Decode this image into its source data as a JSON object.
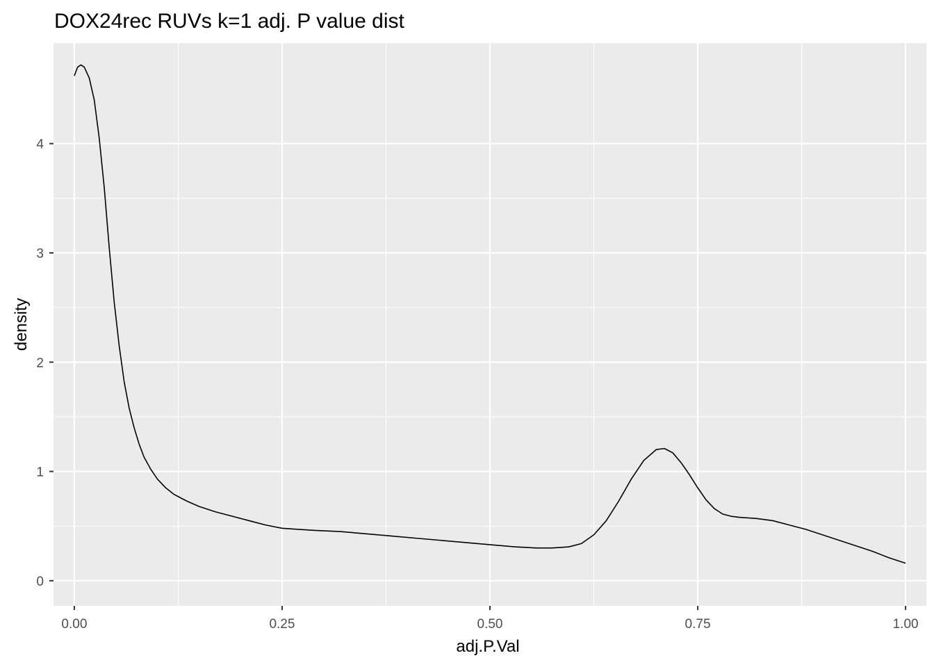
{
  "chart_data": {
    "type": "line",
    "title": "DOX24rec RUVs k=1 adj. P value dist",
    "xlabel": "adj.P.Val",
    "ylabel": "density",
    "xlim": [
      -0.025,
      1.025
    ],
    "ylim": [
      -0.23,
      4.92
    ],
    "x_ticks": [
      0,
      0.25,
      0.5,
      0.75,
      1
    ],
    "x_tick_labels": [
      "0.00",
      "0.25",
      "0.50",
      "0.75",
      "1.00"
    ],
    "y_ticks": [
      0,
      1,
      2,
      3,
      4
    ],
    "y_tick_labels": [
      "0",
      "1",
      "2",
      "3",
      "4"
    ],
    "grid": true,
    "legend": "none",
    "colors": {
      "panel": "#ebebeb",
      "grid": "#ffffff",
      "line": "#000000",
      "ticks": "#333333",
      "tick_text": "#4d4d4d"
    },
    "series": [
      {
        "x": [
          0.0,
          0.004,
          0.008,
          0.012,
          0.018,
          0.024,
          0.03,
          0.036,
          0.042,
          0.048,
          0.054,
          0.06,
          0.066,
          0.072,
          0.078,
          0.084,
          0.092,
          0.1,
          0.11,
          0.12,
          0.135,
          0.15,
          0.17,
          0.19,
          0.21,
          0.23,
          0.25,
          0.27,
          0.29,
          0.32,
          0.35,
          0.38,
          0.41,
          0.44,
          0.47,
          0.5,
          0.53,
          0.555,
          0.575,
          0.595,
          0.61,
          0.625,
          0.64,
          0.655,
          0.67,
          0.685,
          0.7,
          0.71,
          0.72,
          0.73,
          0.74,
          0.75,
          0.76,
          0.77,
          0.78,
          0.79,
          0.8,
          0.82,
          0.84,
          0.86,
          0.88,
          0.9,
          0.92,
          0.94,
          0.96,
          0.98,
          1.0
        ],
        "y": [
          4.62,
          4.7,
          4.72,
          4.7,
          4.6,
          4.4,
          4.05,
          3.6,
          3.05,
          2.55,
          2.15,
          1.82,
          1.58,
          1.4,
          1.25,
          1.13,
          1.02,
          0.93,
          0.85,
          0.79,
          0.73,
          0.68,
          0.63,
          0.59,
          0.55,
          0.51,
          0.48,
          0.47,
          0.46,
          0.45,
          0.43,
          0.41,
          0.39,
          0.37,
          0.35,
          0.33,
          0.31,
          0.3,
          0.3,
          0.31,
          0.34,
          0.42,
          0.55,
          0.73,
          0.93,
          1.1,
          1.2,
          1.21,
          1.17,
          1.08,
          0.97,
          0.85,
          0.74,
          0.66,
          0.61,
          0.59,
          0.58,
          0.57,
          0.55,
          0.51,
          0.47,
          0.42,
          0.37,
          0.32,
          0.27,
          0.21,
          0.16
        ]
      }
    ]
  }
}
